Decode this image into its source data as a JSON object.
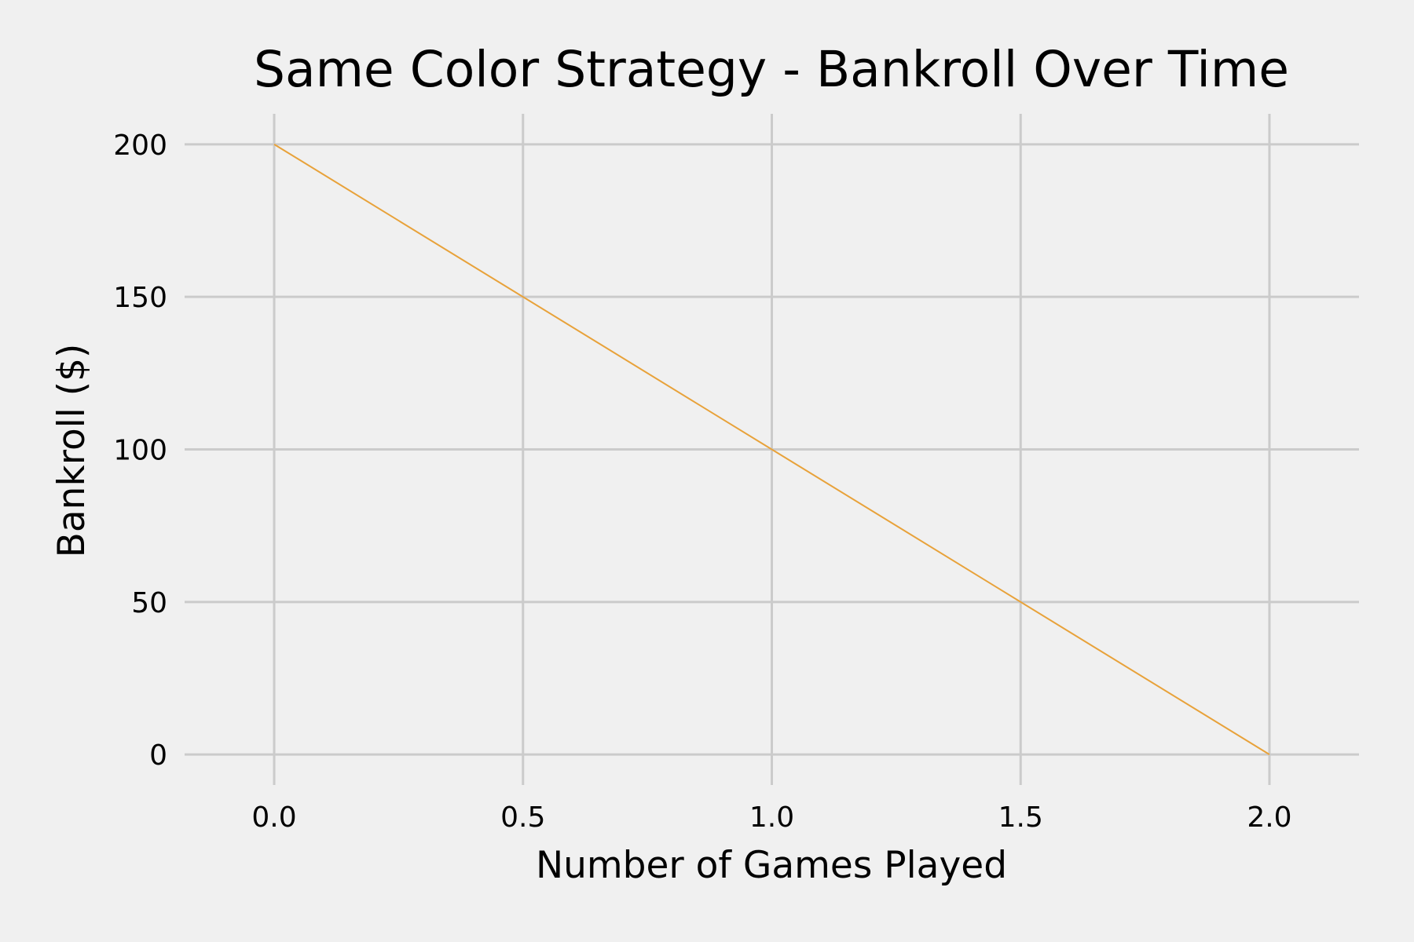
{
  "chart_data": {
    "type": "line",
    "title": "Same Color Strategy - Bankroll Over Time",
    "xlabel": "Number of Games Played",
    "ylabel": "Bankroll ($)",
    "xlim": [
      -0.18,
      2.18
    ],
    "ylim": [
      -10,
      210
    ],
    "x_ticks": [
      0.0,
      0.5,
      1.0,
      1.5,
      2.0
    ],
    "x_tick_labels": [
      "0.0",
      "0.5",
      "1.0",
      "1.5",
      "2.0"
    ],
    "y_ticks": [
      0,
      50,
      100,
      150,
      200
    ],
    "y_tick_labels": [
      "0",
      "50",
      "100",
      "150",
      "200"
    ],
    "grid": true,
    "series": [
      {
        "color": "#e8a23a",
        "x": [
          0,
          1,
          2
        ],
        "y": [
          200,
          100,
          0
        ]
      }
    ]
  }
}
